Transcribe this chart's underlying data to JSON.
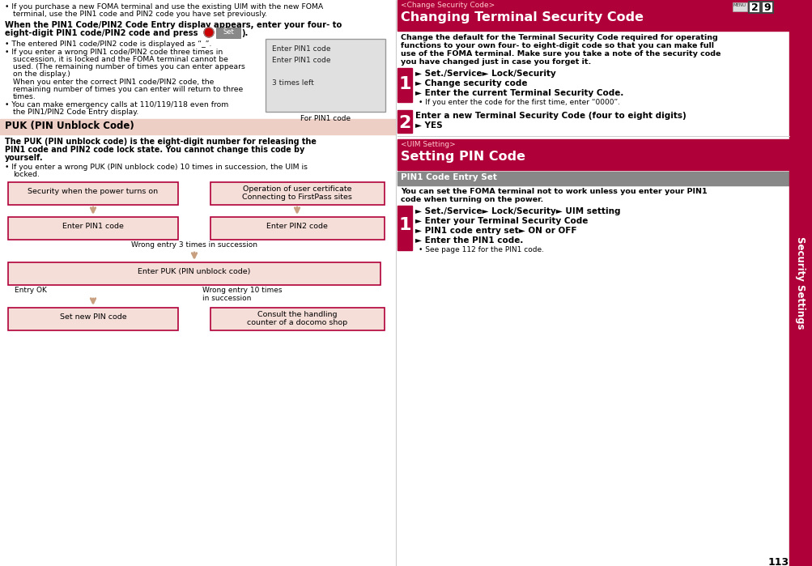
{
  "page_num": "113",
  "sidebar_text": "Security Settings",
  "sidebar_color": "#b0003a",
  "bg_color": "#ffffff",
  "left_panel": {
    "puk_section_title": "PUK (PIN Unblock Code)",
    "puk_bg": "#eecfc5",
    "flow_box_color": "#f5ddd8",
    "flow_box_border": "#b0003a"
  },
  "right_panel": {
    "header_bg": "#b0003a",
    "header2_bg": "#b0003a",
    "pin1_bar_bg": "#b0003a",
    "pin1_bar_color": "#777777"
  }
}
